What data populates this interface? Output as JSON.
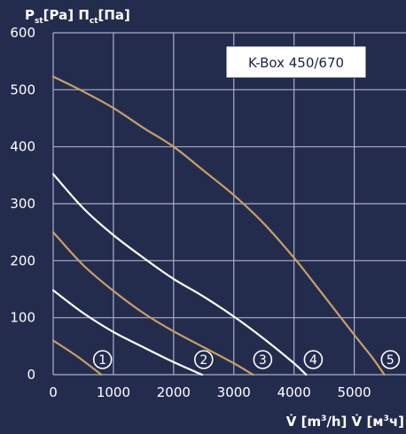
{
  "chart_data": {
    "type": "line",
    "title": "",
    "legend": "K-Box 450/670",
    "ylabel": {
      "p1": "P",
      "s1": "st",
      "p2": "[Pa] П",
      "s2": "ct",
      "p3": "[Па]"
    },
    "xlabel": {
      "p1": "V̇ [m",
      "s1": "3",
      "p2": "/h] V̇ [м",
      "s2": "3",
      "p3": "ч]"
    },
    "xlim": [
      0,
      6000
    ],
    "ylim": [
      0,
      600
    ],
    "x_ticks": [
      0,
      1000,
      2000,
      3000,
      4000,
      5000
    ],
    "y_ticks": [
      0,
      100,
      200,
      300,
      400,
      500,
      600
    ],
    "grid": true,
    "series": [
      {
        "label": "1",
        "color": "#c8a064",
        "x": [
          0,
          400,
          800
        ],
        "y": [
          60,
          32,
          0
        ]
      },
      {
        "label": "2",
        "color": "#ffffff",
        "x": [
          0,
          500,
          1000,
          1500,
          2000,
          2470
        ],
        "y": [
          148,
          108,
          75,
          48,
          22,
          0
        ]
      },
      {
        "label": "3",
        "color": "#c8a064",
        "x": [
          0,
          500,
          1000,
          1500,
          2000,
          2500,
          3000,
          3320
        ],
        "y": [
          250,
          192,
          147,
          108,
          76,
          48,
          20,
          0
        ]
      },
      {
        "label": "4",
        "color": "#ffffff",
        "x": [
          0,
          500,
          1000,
          1500,
          2000,
          2500,
          3000,
          3500,
          4000,
          4200
        ],
        "y": [
          352,
          292,
          245,
          205,
          168,
          137,
          102,
          63,
          20,
          0
        ]
      },
      {
        "label": "5",
        "color": "#c8a064",
        "x": [
          0,
          500,
          1000,
          1500,
          2000,
          2500,
          3000,
          3500,
          4000,
          4500,
          5000,
          5300,
          5500
        ],
        "y": [
          523,
          497,
          468,
          433,
          400,
          358,
          315,
          265,
          205,
          138,
          70,
          30,
          0
        ]
      }
    ],
    "markers": [
      {
        "label": "1",
        "x": 820
      },
      {
        "label": "2",
        "x": 2500
      },
      {
        "label": "3",
        "x": 3480
      },
      {
        "label": "4",
        "x": 4320
      },
      {
        "label": "5",
        "x": 5600
      }
    ]
  }
}
